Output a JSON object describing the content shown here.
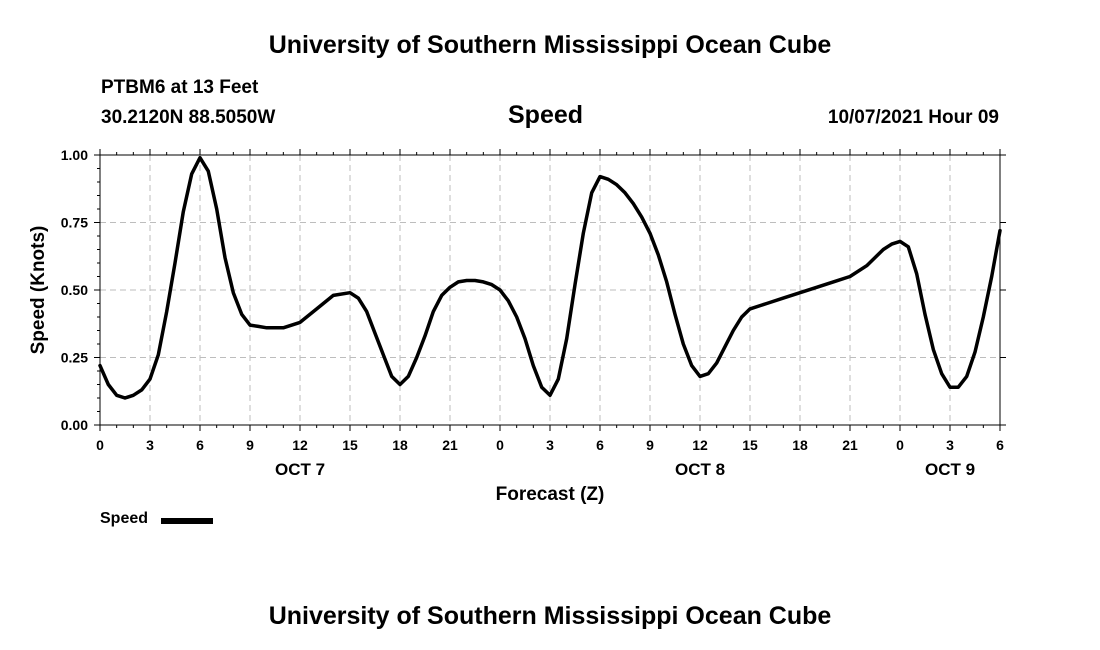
{
  "header": {
    "title": "University of Southern Mississippi Ocean Cube",
    "station": "PTBM6 at 13 Feet",
    "coords": "30.2120N  88.5050W",
    "datetime": "10/07/2021 Hour 09"
  },
  "footer": {
    "title": "University of Southern Mississippi Ocean Cube"
  },
  "chart_data": {
    "type": "line",
    "title": "Speed",
    "xlabel": "Forecast (Z)",
    "ylabel": "Speed (Knots)",
    "xlim": [
      0,
      54
    ],
    "ylim": [
      0,
      1.0
    ],
    "grid": true,
    "y_ticks": [
      "0.00",
      "0.25",
      "0.50",
      "0.75",
      "1.00"
    ],
    "x_ticks": [
      "0",
      "3",
      "6",
      "9",
      "12",
      "15",
      "18",
      "21",
      "0",
      "3",
      "6",
      "9",
      "12",
      "15",
      "18",
      "21",
      "0",
      "3",
      "6"
    ],
    "date_labels": [
      {
        "label": "OCT 7",
        "hour": 12
      },
      {
        "label": "OCT 8",
        "hour": 36
      },
      {
        "label": "OCT 9",
        "hour": 51
      }
    ],
    "legend": {
      "placement": "bottom-left",
      "entries": [
        "Speed"
      ]
    },
    "series": [
      {
        "name": "Speed",
        "color": "#000000",
        "x": [
          0,
          0.5,
          1,
          1.5,
          2,
          2.5,
          3,
          3.5,
          4,
          4.5,
          5,
          5.5,
          6,
          6.5,
          7,
          7.5,
          8,
          8.5,
          9,
          9.5,
          10,
          11,
          12,
          13,
          14,
          15,
          15.5,
          16,
          16.5,
          17,
          17.5,
          18,
          18.5,
          19,
          19.5,
          20,
          20.5,
          21,
          21.5,
          22,
          22.5,
          23,
          23.5,
          24,
          24.5,
          25,
          25.5,
          26,
          26.5,
          27,
          27.5,
          28,
          28.5,
          29,
          29.5,
          30,
          30.5,
          31,
          31.5,
          32,
          32.5,
          33,
          33.5,
          34,
          34.5,
          35,
          35.5,
          36,
          36.5,
          37,
          37.5,
          38,
          38.5,
          39,
          40,
          41,
          42,
          43,
          44,
          45,
          46,
          46.5,
          47,
          47.5,
          48,
          48.5,
          49,
          49.5,
          50,
          50.5,
          51,
          51.5,
          52,
          52.5,
          53,
          53.5,
          54
        ],
        "values": [
          0.22,
          0.15,
          0.11,
          0.1,
          0.11,
          0.13,
          0.17,
          0.26,
          0.42,
          0.6,
          0.79,
          0.93,
          0.99,
          0.94,
          0.8,
          0.62,
          0.49,
          0.41,
          0.37,
          0.365,
          0.36,
          0.36,
          0.38,
          0.43,
          0.48,
          0.49,
          0.47,
          0.42,
          0.34,
          0.26,
          0.18,
          0.15,
          0.18,
          0.25,
          0.33,
          0.42,
          0.48,
          0.51,
          0.53,
          0.535,
          0.535,
          0.53,
          0.52,
          0.5,
          0.46,
          0.4,
          0.32,
          0.22,
          0.14,
          0.11,
          0.17,
          0.32,
          0.52,
          0.71,
          0.86,
          0.92,
          0.91,
          0.89,
          0.86,
          0.82,
          0.77,
          0.71,
          0.63,
          0.53,
          0.41,
          0.3,
          0.22,
          0.18,
          0.19,
          0.23,
          0.29,
          0.35,
          0.4,
          0.43,
          0.45,
          0.47,
          0.49,
          0.51,
          0.53,
          0.55,
          0.59,
          0.62,
          0.65,
          0.67,
          0.68,
          0.66,
          0.56,
          0.41,
          0.28,
          0.19,
          0.14,
          0.14,
          0.18,
          0.27,
          0.4,
          0.55,
          0.72
        ]
      }
    ]
  }
}
